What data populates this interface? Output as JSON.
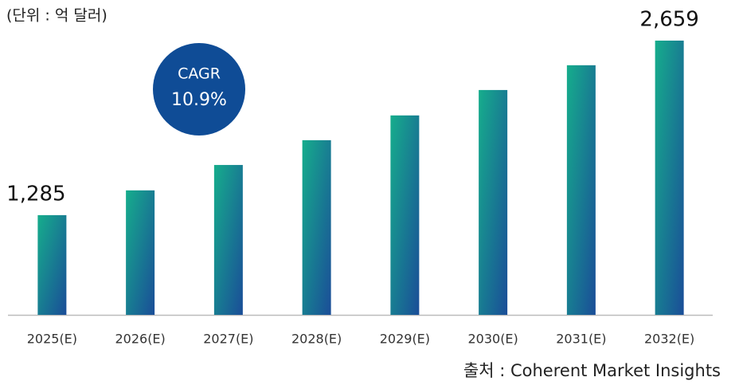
{
  "chart_data": {
    "type": "bar",
    "unit_note": "(단위 : 억 달러)",
    "cagr_label": "CAGR",
    "cagr_value": "10.9%",
    "source": "출처 : Coherent Market Insights",
    "categories": [
      "2025(E)",
      "2026(E)",
      "2027(E)",
      "2028(E)",
      "2029(E)",
      "2030(E)",
      "2031(E)",
      "2032(E)"
    ],
    "values": [
      1285,
      1480,
      1680,
      1875,
      2070,
      2270,
      2465,
      2659
    ],
    "value_labels": [
      "1,285",
      null,
      null,
      null,
      null,
      null,
      null,
      "2,659"
    ],
    "color": [
      "#16ad8c",
      "#1a4d98"
    ],
    "ylim": [
      500,
      2700
    ]
  }
}
